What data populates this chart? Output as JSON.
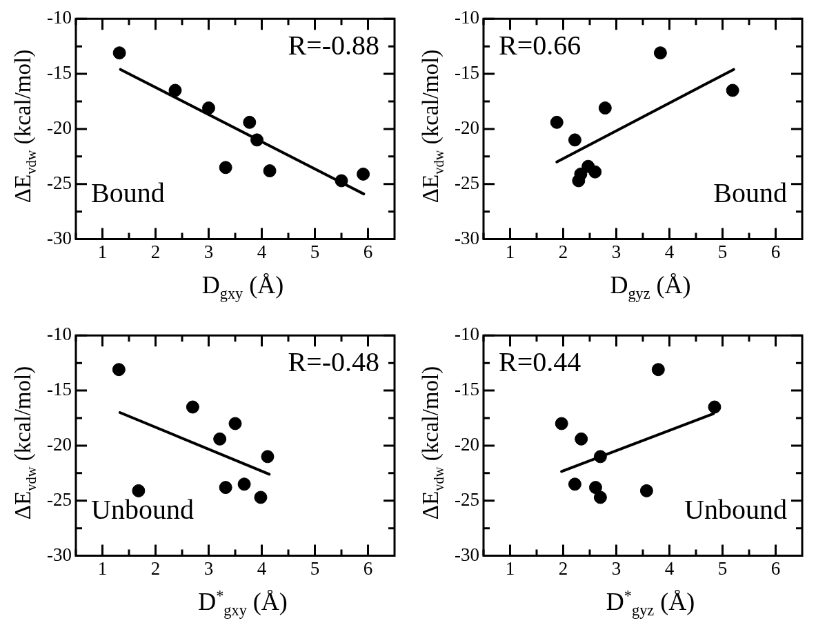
{
  "chart_data": [
    {
      "type": "scatter",
      "xlabel": "D$_{gxy}$ (Å)",
      "ylabel": "ΔE$_{vdw}$ (kcal/mol)",
      "xlim": [
        0.5,
        6.5
      ],
      "ylim": [
        -30,
        -10
      ],
      "xticks": [
        {
          "value": 0.5,
          "label": null
        },
        1,
        {
          "value": 1.5,
          "label": null
        },
        2,
        {
          "value": 2.5,
          "label": null
        },
        3,
        {
          "value": 3.5,
          "label": null
        },
        4,
        {
          "value": 4.5,
          "label": null
        },
        5,
        {
          "value": 5.5,
          "label": null
        },
        6
      ],
      "yticks": [
        -30,
        {
          "value": -27.5,
          "label": null
        },
        -25,
        {
          "value": -22.5,
          "label": null
        },
        -20,
        {
          "value": -17.5,
          "label": null
        },
        -15,
        {
          "value": -12.5,
          "label": null
        },
        -10
      ],
      "annotations": [
        "R=-0.88",
        "Bound"
      ],
      "series": [
        {
          "color": "#000000",
          "marker": "circle",
          "x": [
            1.32,
            2.37,
            3.0,
            3.77,
            3.91,
            3.32,
            4.15,
            5.5,
            5.91
          ],
          "values": [
            -13.1,
            -16.5,
            -18.1,
            -19.4,
            -21.0,
            -23.5,
            -23.8,
            -24.7,
            -24.1
          ]
        },
        {
          "type": "line",
          "color": "#000000",
          "marker": "none",
          "x": [
            1.34,
            5.92
          ],
          "values": [
            -14.6,
            -25.9
          ]
        }
      ]
    },
    {
      "type": "scatter",
      "xlabel": "D$_{gyz}$ (Å)",
      "ylabel": "ΔE$_{vdw}$ (kcal/mol)",
      "xlim": [
        0.5,
        6.5
      ],
      "ylim": [
        -30,
        -10
      ],
      "xticks": [
        {
          "value": 0.5,
          "label": null
        },
        1,
        {
          "value": 1.5,
          "label": null
        },
        2,
        {
          "value": 2.5,
          "label": null
        },
        3,
        {
          "value": 3.5,
          "label": null
        },
        4,
        {
          "value": 4.5,
          "label": null
        },
        5,
        {
          "value": 5.5,
          "label": null
        },
        6
      ],
      "yticks": [
        -30,
        {
          "value": -27.5,
          "label": null
        },
        -25,
        {
          "value": -22.5,
          "label": null
        },
        -20,
        {
          "value": -17.5,
          "label": null
        },
        -15,
        {
          "value": -12.5,
          "label": null
        },
        -10
      ],
      "annotations": [
        "R=0.66",
        "Bound"
      ],
      "series": [
        {
          "color": "#000000",
          "marker": "circle",
          "x": [
            1.88,
            2.22,
            3.83,
            2.79,
            5.19,
            2.29,
            2.33,
            2.47,
            2.6
          ],
          "values": [
            -19.4,
            -21.0,
            -13.1,
            -18.1,
            -16.5,
            -24.7,
            -24.1,
            -23.4,
            -23.9
          ]
        },
        {
          "type": "line",
          "color": "#000000",
          "marker": "none",
          "x": [
            1.88,
            5.21
          ],
          "values": [
            -23.0,
            -14.6
          ]
        }
      ]
    },
    {
      "type": "scatter",
      "xlabel": "D$^{*}$$_{gxy}$ (Å)",
      "ylabel": "ΔE$_{vdw}$ (kcal/mol)",
      "xlim": [
        0.5,
        6.5
      ],
      "ylim": [
        -30,
        -10
      ],
      "xticks": [
        {
          "value": 0.5,
          "label": null
        },
        1,
        {
          "value": 1.5,
          "label": null
        },
        2,
        {
          "value": 2.5,
          "label": null
        },
        3,
        {
          "value": 3.5,
          "label": null
        },
        4,
        {
          "value": 4.5,
          "label": null
        },
        5,
        {
          "value": 5.5,
          "label": null
        },
        6
      ],
      "yticks": [
        -30,
        {
          "value": -27.5,
          "label": null
        },
        -25,
        {
          "value": -22.5,
          "label": null
        },
        -20,
        {
          "value": -17.5,
          "label": null
        },
        -15,
        {
          "value": -12.5,
          "label": null
        },
        -10
      ],
      "annotations": [
        "R=-0.48",
        "Unbound"
      ],
      "series": [
        {
          "color": "#000000",
          "marker": "circle",
          "x": [
            1.31,
            1.68,
            2.7,
            3.5,
            3.21,
            4.11,
            3.32,
            3.67,
            3.98
          ],
          "values": [
            -13.1,
            -24.1,
            -16.5,
            -18.0,
            -19.4,
            -21.0,
            -23.8,
            -23.5,
            -24.7
          ]
        },
        {
          "type": "line",
          "color": "#000000",
          "marker": "none",
          "x": [
            1.33,
            4.14
          ],
          "values": [
            -17.0,
            -22.6
          ]
        }
      ]
    },
    {
      "type": "scatter",
      "xlabel": "D$^{*}$$_{gyz}$ (Å)",
      "ylabel": "ΔE$_{vdw}$ (kcal/mol)",
      "xlim": [
        0.5,
        6.5
      ],
      "ylim": [
        -30,
        -10
      ],
      "xticks": [
        {
          "value": 0.5,
          "label": null
        },
        1,
        {
          "value": 1.5,
          "label": null
        },
        2,
        {
          "value": 2.5,
          "label": null
        },
        3,
        {
          "value": 3.5,
          "label": null
        },
        4,
        {
          "value": 4.5,
          "label": null
        },
        5,
        {
          "value": 5.5,
          "label": null
        },
        6
      ],
      "yticks": [
        -30,
        {
          "value": -27.5,
          "label": null
        },
        -25,
        {
          "value": -22.5,
          "label": null
        },
        -20,
        {
          "value": -17.5,
          "label": null
        },
        -15,
        {
          "value": -12.5,
          "label": null
        },
        -10
      ],
      "annotations": [
        "R=0.44",
        "Unbound"
      ],
      "series": [
        {
          "color": "#000000",
          "marker": "circle",
          "x": [
            1.97,
            2.34,
            3.79,
            4.85,
            2.7,
            2.22,
            2.61,
            2.7,
            3.57
          ],
          "values": [
            -18.0,
            -19.4,
            -13.1,
            -16.5,
            -21.0,
            -23.5,
            -23.8,
            -24.7,
            -24.1
          ]
        },
        {
          "type": "line",
          "color": "#000000",
          "marker": "none",
          "x": [
            1.97,
            4.83
          ],
          "values": [
            -22.35,
            -17.1
          ]
        }
      ]
    }
  ]
}
